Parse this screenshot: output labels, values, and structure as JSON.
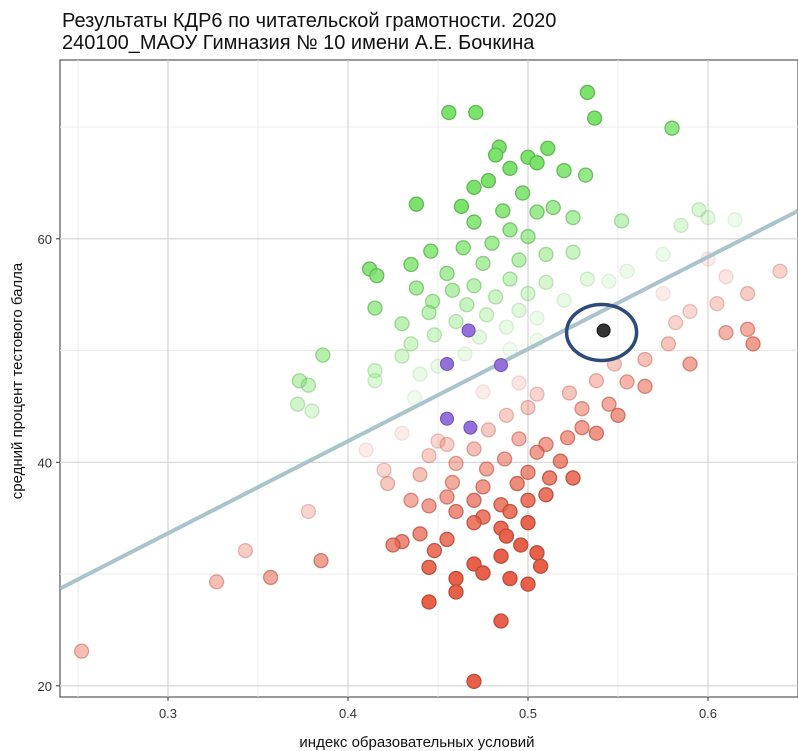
{
  "chart_data": {
    "type": "scatter",
    "title": [
      "Результаты КДР6 по читательской грамотности. 2020",
      "240100_МАОУ Гимназия № 10 имени А.Е. Бочкина"
    ],
    "xlabel": "индекс образовательных условий",
    "ylabel": "средний процент тестового балла",
    "xlim": [
      0.24,
      0.65
    ],
    "ylim": [
      19,
      76
    ],
    "x_ticks": [
      0.3,
      0.4,
      0.5,
      0.6
    ],
    "x_tick_labels": [
      "0.3",
      "0.4",
      "0.5",
      "0.6"
    ],
    "y_ticks": [
      20,
      40,
      60
    ],
    "y_tick_labels": [
      "20",
      "40",
      "60"
    ],
    "grid": true,
    "trend_line": {
      "x": [
        0.24,
        0.65
      ],
      "y": [
        28.7,
        62.5
      ],
      "color": "#a9c4cc"
    },
    "colors": {
      "above": "#7be36b",
      "below": "#e8604a",
      "group": "#9370db",
      "highlight": "#333333",
      "marker_ring": "#2c4a7a"
    },
    "highlight_point": {
      "x": 0.542,
      "y": 51.8
    },
    "group_points": [
      {
        "x": 0.467,
        "y": 51.8
      },
      {
        "x": 0.455,
        "y": 48.8
      },
      {
        "x": 0.485,
        "y": 48.7
      },
      {
        "x": 0.455,
        "y": 43.9
      },
      {
        "x": 0.468,
        "y": 43.1
      }
    ],
    "points": [
      {
        "x": 0.456,
        "y": 71.3
      },
      {
        "x": 0.471,
        "y": 71.3
      },
      {
        "x": 0.533,
        "y": 73.1
      },
      {
        "x": 0.537,
        "y": 70.8
      },
      {
        "x": 0.58,
        "y": 69.9
      },
      {
        "x": 0.484,
        "y": 68.2
      },
      {
        "x": 0.482,
        "y": 67.5
      },
      {
        "x": 0.511,
        "y": 68.1
      },
      {
        "x": 0.5,
        "y": 67.3
      },
      {
        "x": 0.505,
        "y": 66.8
      },
      {
        "x": 0.49,
        "y": 66.3
      },
      {
        "x": 0.52,
        "y": 66.1
      },
      {
        "x": 0.532,
        "y": 65.7
      },
      {
        "x": 0.478,
        "y": 65.2
      },
      {
        "x": 0.47,
        "y": 64.6
      },
      {
        "x": 0.497,
        "y": 64.1
      },
      {
        "x": 0.463,
        "y": 62.9
      },
      {
        "x": 0.438,
        "y": 63.1
      },
      {
        "x": 0.486,
        "y": 62.5
      },
      {
        "x": 0.505,
        "y": 62.4
      },
      {
        "x": 0.514,
        "y": 62.8
      },
      {
        "x": 0.525,
        "y": 61.9
      },
      {
        "x": 0.47,
        "y": 61.5
      },
      {
        "x": 0.49,
        "y": 60.8
      },
      {
        "x": 0.5,
        "y": 60.2
      },
      {
        "x": 0.48,
        "y": 59.6
      },
      {
        "x": 0.464,
        "y": 59.2
      },
      {
        "x": 0.446,
        "y": 58.9
      },
      {
        "x": 0.51,
        "y": 58.6
      },
      {
        "x": 0.495,
        "y": 58.1
      },
      {
        "x": 0.475,
        "y": 57.8
      },
      {
        "x": 0.525,
        "y": 58.8
      },
      {
        "x": 0.435,
        "y": 57.7
      },
      {
        "x": 0.412,
        "y": 57.3
      },
      {
        "x": 0.416,
        "y": 56.7
      },
      {
        "x": 0.455,
        "y": 56.9
      },
      {
        "x": 0.49,
        "y": 56.4
      },
      {
        "x": 0.51,
        "y": 56.1
      },
      {
        "x": 0.533,
        "y": 56.4
      },
      {
        "x": 0.47,
        "y": 55.8
      },
      {
        "x": 0.438,
        "y": 55.6
      },
      {
        "x": 0.458,
        "y": 55.4
      },
      {
        "x": 0.5,
        "y": 55.1
      },
      {
        "x": 0.482,
        "y": 54.8
      },
      {
        "x": 0.447,
        "y": 54.4
      },
      {
        "x": 0.415,
        "y": 53.8
      },
      {
        "x": 0.466,
        "y": 54.1
      },
      {
        "x": 0.52,
        "y": 54.5
      },
      {
        "x": 0.495,
        "y": 53.6
      },
      {
        "x": 0.445,
        "y": 53.4
      },
      {
        "x": 0.477,
        "y": 53.2
      },
      {
        "x": 0.505,
        "y": 52.9
      },
      {
        "x": 0.43,
        "y": 52.4
      },
      {
        "x": 0.46,
        "y": 52.6
      },
      {
        "x": 0.488,
        "y": 52.1
      },
      {
        "x": 0.448,
        "y": 51.4
      },
      {
        "x": 0.473,
        "y": 51.2
      },
      {
        "x": 0.505,
        "y": 50.9
      },
      {
        "x": 0.435,
        "y": 50.6
      },
      {
        "x": 0.49,
        "y": 50.1
      },
      {
        "x": 0.386,
        "y": 49.6
      },
      {
        "x": 0.43,
        "y": 49.5
      },
      {
        "x": 0.465,
        "y": 49.7
      },
      {
        "x": 0.45,
        "y": 48.6
      },
      {
        "x": 0.415,
        "y": 48.2
      },
      {
        "x": 0.44,
        "y": 47.9
      },
      {
        "x": 0.373,
        "y": 47.3
      },
      {
        "x": 0.378,
        "y": 46.9
      },
      {
        "x": 0.415,
        "y": 47.3
      },
      {
        "x": 0.372,
        "y": 45.2
      },
      {
        "x": 0.38,
        "y": 44.6
      },
      {
        "x": 0.437,
        "y": 45.8
      },
      {
        "x": 0.552,
        "y": 61.6
      },
      {
        "x": 0.585,
        "y": 61.2
      },
      {
        "x": 0.595,
        "y": 62.6
      },
      {
        "x": 0.6,
        "y": 61.9
      },
      {
        "x": 0.615,
        "y": 61.7
      },
      {
        "x": 0.575,
        "y": 58.6
      },
      {
        "x": 0.555,
        "y": 57.1
      },
      {
        "x": 0.545,
        "y": 56.2
      },
      {
        "x": 0.6,
        "y": 58.2
      },
      {
        "x": 0.61,
        "y": 56.6
      },
      {
        "x": 0.575,
        "y": 55.1
      },
      {
        "x": 0.64,
        "y": 57.1
      },
      {
        "x": 0.622,
        "y": 55.1
      },
      {
        "x": 0.605,
        "y": 54.2
      },
      {
        "x": 0.59,
        "y": 53.5
      },
      {
        "x": 0.582,
        "y": 52.5
      },
      {
        "x": 0.61,
        "y": 51.6
      },
      {
        "x": 0.622,
        "y": 51.9
      },
      {
        "x": 0.625,
        "y": 50.6
      },
      {
        "x": 0.578,
        "y": 50.6
      },
      {
        "x": 0.565,
        "y": 49.2
      },
      {
        "x": 0.59,
        "y": 48.8
      },
      {
        "x": 0.548,
        "y": 48.8
      },
      {
        "x": 0.555,
        "y": 47.2
      },
      {
        "x": 0.565,
        "y": 46.8
      },
      {
        "x": 0.538,
        "y": 47.3
      },
      {
        "x": 0.523,
        "y": 46.2
      },
      {
        "x": 0.545,
        "y": 45.2
      },
      {
        "x": 0.55,
        "y": 44.2
      },
      {
        "x": 0.53,
        "y": 44.8
      },
      {
        "x": 0.53,
        "y": 43.1
      },
      {
        "x": 0.538,
        "y": 42.6
      },
      {
        "x": 0.522,
        "y": 42.2
      },
      {
        "x": 0.51,
        "y": 41.6
      },
      {
        "x": 0.495,
        "y": 47.1
      },
      {
        "x": 0.505,
        "y": 46.1
      },
      {
        "x": 0.5,
        "y": 44.9
      },
      {
        "x": 0.488,
        "y": 44.2
      },
      {
        "x": 0.475,
        "y": 46.3
      },
      {
        "x": 0.478,
        "y": 42.9
      },
      {
        "x": 0.495,
        "y": 42.1
      },
      {
        "x": 0.505,
        "y": 40.9
      },
      {
        "x": 0.487,
        "y": 40.3
      },
      {
        "x": 0.47,
        "y": 41.2
      },
      {
        "x": 0.455,
        "y": 41.6
      },
      {
        "x": 0.445,
        "y": 40.6
      },
      {
        "x": 0.46,
        "y": 39.9
      },
      {
        "x": 0.477,
        "y": 39.4
      },
      {
        "x": 0.5,
        "y": 39.1
      },
      {
        "x": 0.512,
        "y": 38.6
      },
      {
        "x": 0.494,
        "y": 38.1
      },
      {
        "x": 0.475,
        "y": 37.8
      },
      {
        "x": 0.458,
        "y": 38.2
      },
      {
        "x": 0.44,
        "y": 38.9
      },
      {
        "x": 0.455,
        "y": 36.9
      },
      {
        "x": 0.47,
        "y": 36.6
      },
      {
        "x": 0.485,
        "y": 36.2
      },
      {
        "x": 0.5,
        "y": 36.6
      },
      {
        "x": 0.51,
        "y": 37.1
      },
      {
        "x": 0.49,
        "y": 35.6
      },
      {
        "x": 0.475,
        "y": 35.1
      },
      {
        "x": 0.46,
        "y": 35.6
      },
      {
        "x": 0.445,
        "y": 36.1
      },
      {
        "x": 0.435,
        "y": 36.6
      },
      {
        "x": 0.5,
        "y": 34.6
      },
      {
        "x": 0.485,
        "y": 34.1
      },
      {
        "x": 0.47,
        "y": 34.6
      },
      {
        "x": 0.44,
        "y": 33.6
      },
      {
        "x": 0.455,
        "y": 33.1
      },
      {
        "x": 0.488,
        "y": 33.4
      },
      {
        "x": 0.43,
        "y": 32.9
      },
      {
        "x": 0.448,
        "y": 32.1
      },
      {
        "x": 0.496,
        "y": 32.6
      },
      {
        "x": 0.505,
        "y": 31.9
      },
      {
        "x": 0.485,
        "y": 31.6
      },
      {
        "x": 0.47,
        "y": 30.9
      },
      {
        "x": 0.445,
        "y": 30.6
      },
      {
        "x": 0.425,
        "y": 32.6
      },
      {
        "x": 0.507,
        "y": 30.7
      },
      {
        "x": 0.475,
        "y": 30.1
      },
      {
        "x": 0.46,
        "y": 29.6
      },
      {
        "x": 0.49,
        "y": 29.6
      },
      {
        "x": 0.5,
        "y": 29.1
      },
      {
        "x": 0.46,
        "y": 28.4
      },
      {
        "x": 0.445,
        "y": 27.5
      },
      {
        "x": 0.485,
        "y": 25.8
      },
      {
        "x": 0.47,
        "y": 20.4
      },
      {
        "x": 0.525,
        "y": 38.6
      },
      {
        "x": 0.518,
        "y": 40.1
      },
      {
        "x": 0.45,
        "y": 41.9
      },
      {
        "x": 0.43,
        "y": 42.6
      },
      {
        "x": 0.41,
        "y": 41.1
      },
      {
        "x": 0.42,
        "y": 39.3
      },
      {
        "x": 0.422,
        "y": 38.1
      },
      {
        "x": 0.378,
        "y": 35.6
      },
      {
        "x": 0.385,
        "y": 31.2
      },
      {
        "x": 0.343,
        "y": 32.1
      },
      {
        "x": 0.357,
        "y": 29.7
      },
      {
        "x": 0.327,
        "y": 29.3
      },
      {
        "x": 0.252,
        "y": 23.1
      }
    ]
  }
}
